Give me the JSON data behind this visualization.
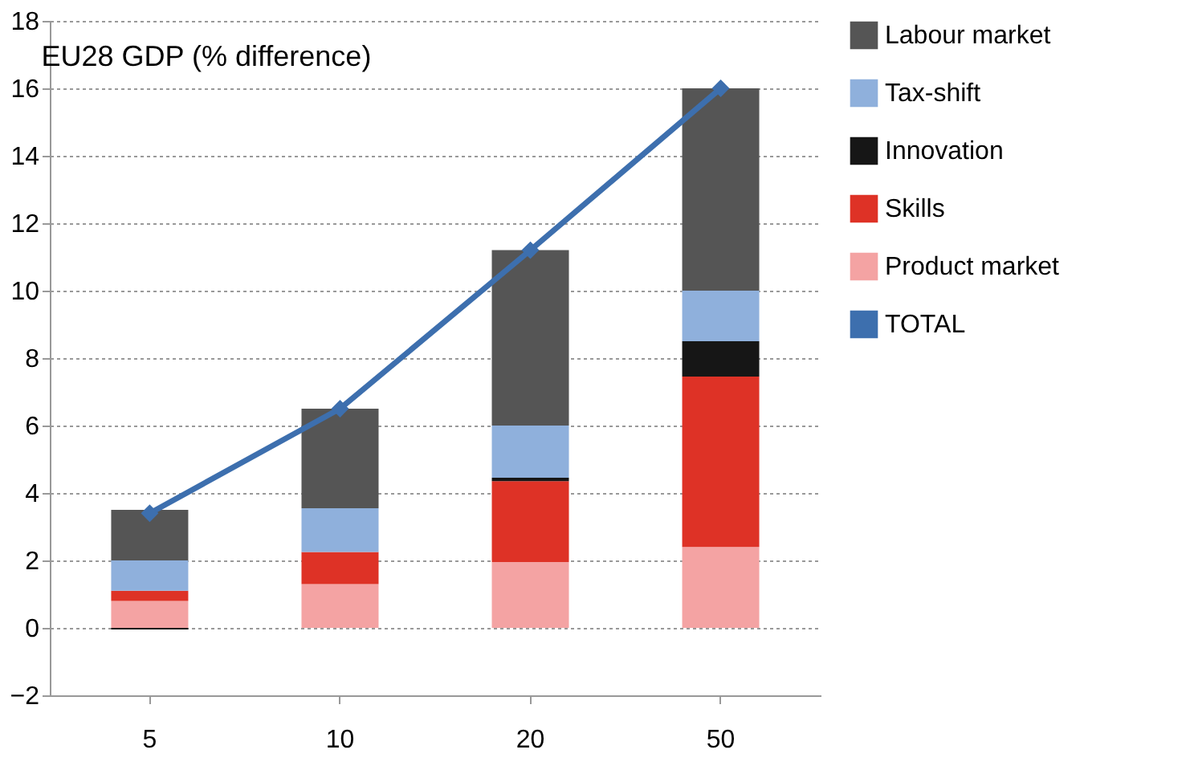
{
  "chart_data": {
    "type": "bar",
    "stacked": true,
    "title": "EU28 GDP (% difference)",
    "categories": [
      "5",
      "10",
      "20",
      "50"
    ],
    "series": [
      {
        "name": "Product market",
        "color": "#f4a3a3",
        "values": [
          0.8,
          1.3,
          1.95,
          2.4
        ]
      },
      {
        "name": "Skills",
        "color": "#de3226",
        "values": [
          0.3,
          0.95,
          2.4,
          5.05
        ]
      },
      {
        "name": "Innovation",
        "color": "#161616",
        "values": [
          -0.05,
          0,
          0.1,
          1.05
        ]
      },
      {
        "name": "Tax-shift",
        "color": "#8fb0dc",
        "values": [
          0.9,
          1.3,
          1.55,
          1.5
        ]
      },
      {
        "name": "Labour market",
        "color": "#555555",
        "values": [
          1.5,
          2.95,
          5.2,
          6.0
        ]
      },
      {
        "name": "TOTAL",
        "type": "line",
        "color": "#3d6fae",
        "marker": "diamond",
        "values": [
          3.4,
          6.5,
          11.2,
          16.0
        ]
      }
    ],
    "ylim": [
      -2,
      18
    ],
    "yticks": [
      -2,
      0,
      2,
      4,
      6,
      8,
      10,
      12,
      14,
      16,
      18
    ],
    "grid": "y",
    "legend": "right"
  }
}
